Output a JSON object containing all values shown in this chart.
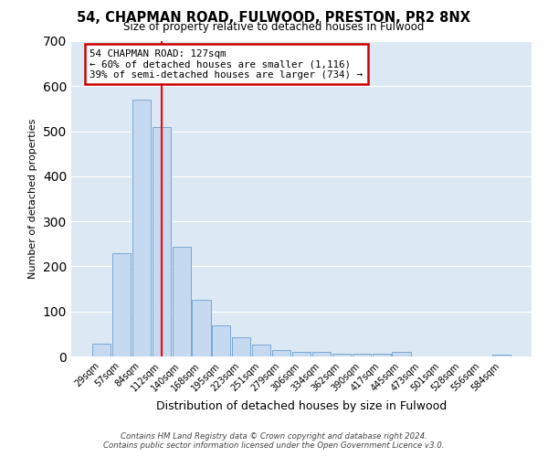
{
  "title": "54, CHAPMAN ROAD, FULWOOD, PRESTON, PR2 8NX",
  "subtitle": "Size of property relative to detached houses in Fulwood",
  "xlabel": "Distribution of detached houses by size in Fulwood",
  "ylabel": "Number of detached properties",
  "bar_labels": [
    "29sqm",
    "57sqm",
    "84sqm",
    "112sqm",
    "140sqm",
    "168sqm",
    "195sqm",
    "223sqm",
    "251sqm",
    "279sqm",
    "306sqm",
    "334sqm",
    "362sqm",
    "390sqm",
    "417sqm",
    "445sqm",
    "473sqm",
    "501sqm",
    "528sqm",
    "556sqm",
    "584sqm"
  ],
  "bar_values": [
    28,
    230,
    570,
    510,
    243,
    125,
    70,
    43,
    27,
    15,
    10,
    10,
    7,
    7,
    7,
    10,
    0,
    0,
    0,
    0,
    5
  ],
  "bar_color": "#c5d9f0",
  "bar_edge_color": "#7aa8d2",
  "annotation_title": "54 CHAPMAN ROAD: 127sqm",
  "annotation_line1": "← 60% of detached houses are smaller (1,116)",
  "annotation_line2": "39% of semi-detached houses are larger (734) →",
  "annotation_box_color": "#cc0000",
  "ylim": [
    0,
    700
  ],
  "yticks": [
    0,
    100,
    200,
    300,
    400,
    500,
    600,
    700
  ],
  "background_color": "#dce9f5",
  "grid_color": "#ffffff",
  "footer_line1": "Contains HM Land Registry data © Crown copyright and database right 2024.",
  "footer_line2": "Contains public sector information licensed under the Open Government Licence v3.0."
}
